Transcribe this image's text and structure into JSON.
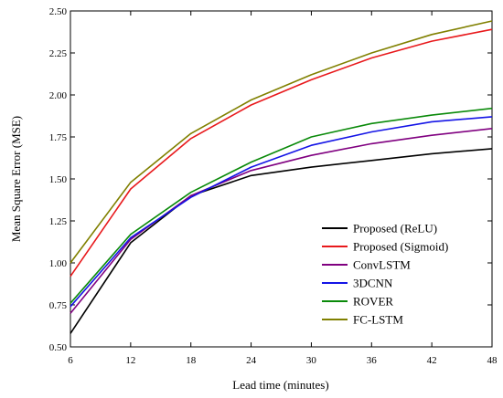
{
  "chart_data": {
    "type": "line",
    "title": "",
    "xlabel": "Lead time (minutes)",
    "ylabel": "Mean Square Error (MSE)",
    "x": [
      6,
      12,
      18,
      24,
      30,
      36,
      42,
      48
    ],
    "xlim": [
      6,
      48
    ],
    "ylim": [
      0.5,
      2.5
    ],
    "xticks": [
      "6",
      "12",
      "18",
      "24",
      "30",
      "36",
      "42",
      "48"
    ],
    "yticks": [
      "0.50",
      "0.75",
      "1.00",
      "1.25",
      "1.50",
      "1.75",
      "2.00",
      "2.25",
      "2.50"
    ],
    "grid": false,
    "legend_position": "bottom-right",
    "series": [
      {
        "name": "Proposed (ReLU)",
        "color": "#000000",
        "values": [
          0.58,
          1.12,
          1.4,
          1.52,
          1.57,
          1.61,
          1.65,
          1.68
        ]
      },
      {
        "name": "Proposed (Sigmoid)",
        "color": "#e8191c",
        "values": [
          0.92,
          1.44,
          1.74,
          1.94,
          2.09,
          2.22,
          2.32,
          2.39
        ]
      },
      {
        "name": "ConvLSTM",
        "color": "#800080",
        "values": [
          0.7,
          1.14,
          1.4,
          1.55,
          1.64,
          1.71,
          1.76,
          1.8
        ]
      },
      {
        "name": "3DCNN",
        "color": "#1414e6",
        "values": [
          0.74,
          1.15,
          1.39,
          1.57,
          1.7,
          1.78,
          1.84,
          1.87
        ]
      },
      {
        "name": "ROVER",
        "color": "#0a8a0a",
        "values": [
          0.76,
          1.17,
          1.42,
          1.6,
          1.75,
          1.83,
          1.88,
          1.92
        ]
      },
      {
        "name": "FC-LSTM",
        "color": "#808000",
        "values": [
          1.0,
          1.48,
          1.77,
          1.97,
          2.12,
          2.25,
          2.36,
          2.44
        ]
      }
    ]
  }
}
